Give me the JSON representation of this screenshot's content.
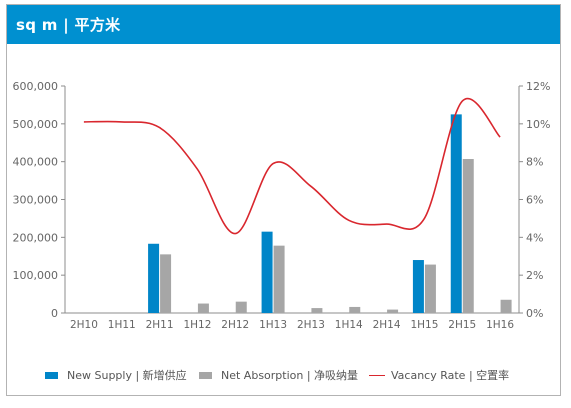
{
  "header": {
    "title": "sq m | 平方米"
  },
  "colors": {
    "header_bg": "#0090d0",
    "new_supply": "#0085c8",
    "net_absorption": "#a6a6a6",
    "vacancy": "#d9272e"
  },
  "legend": {
    "new_supply": "New Supply | 新增供应",
    "net_absorption": "Net Absorption | 净吸纳量",
    "vacancy": "Vacancy Rate | 空置率"
  },
  "chart_data": {
    "type": "bar",
    "categories": [
      "2H10",
      "1H11",
      "2H11",
      "1H12",
      "2H12",
      "1H13",
      "2H13",
      "1H14",
      "2H14",
      "1H15",
      "2H15",
      "1H16"
    ],
    "series": [
      {
        "name": "New Supply | 新增供应",
        "type": "bar",
        "axis": "left",
        "values": [
          0,
          0,
          183000,
          0,
          0,
          215000,
          0,
          0,
          0,
          140000,
          525000,
          0
        ]
      },
      {
        "name": "Net Absorption | 净吸纳量",
        "type": "bar",
        "axis": "left",
        "values": [
          0,
          0,
          155000,
          25000,
          30000,
          178000,
          13000,
          16000,
          9000,
          128000,
          407000,
          35000
        ]
      },
      {
        "name": "Vacancy Rate | 空置率",
        "type": "line",
        "axis": "right",
        "values": [
          10.1,
          10.1,
          9.8,
          7.6,
          4.2,
          7.9,
          6.7,
          4.9,
          4.7,
          5.0,
          11.2,
          9.3
        ]
      }
    ],
    "y_left": {
      "min": 0,
      "max": 600000,
      "ticks": [
        0,
        100000,
        200000,
        300000,
        400000,
        500000,
        600000
      ],
      "tick_labels": [
        "0",
        "100,000",
        "200,000",
        "300,000",
        "400,000",
        "500,000",
        "600,000"
      ]
    },
    "y_right": {
      "min": 0,
      "max": 12,
      "ticks": [
        0,
        2,
        4,
        6,
        8,
        10,
        12
      ],
      "tick_labels": [
        "0%",
        "2%",
        "4%",
        "6%",
        "8%",
        "10%",
        "12%"
      ]
    },
    "grid": false,
    "legend_position": "bottom"
  }
}
